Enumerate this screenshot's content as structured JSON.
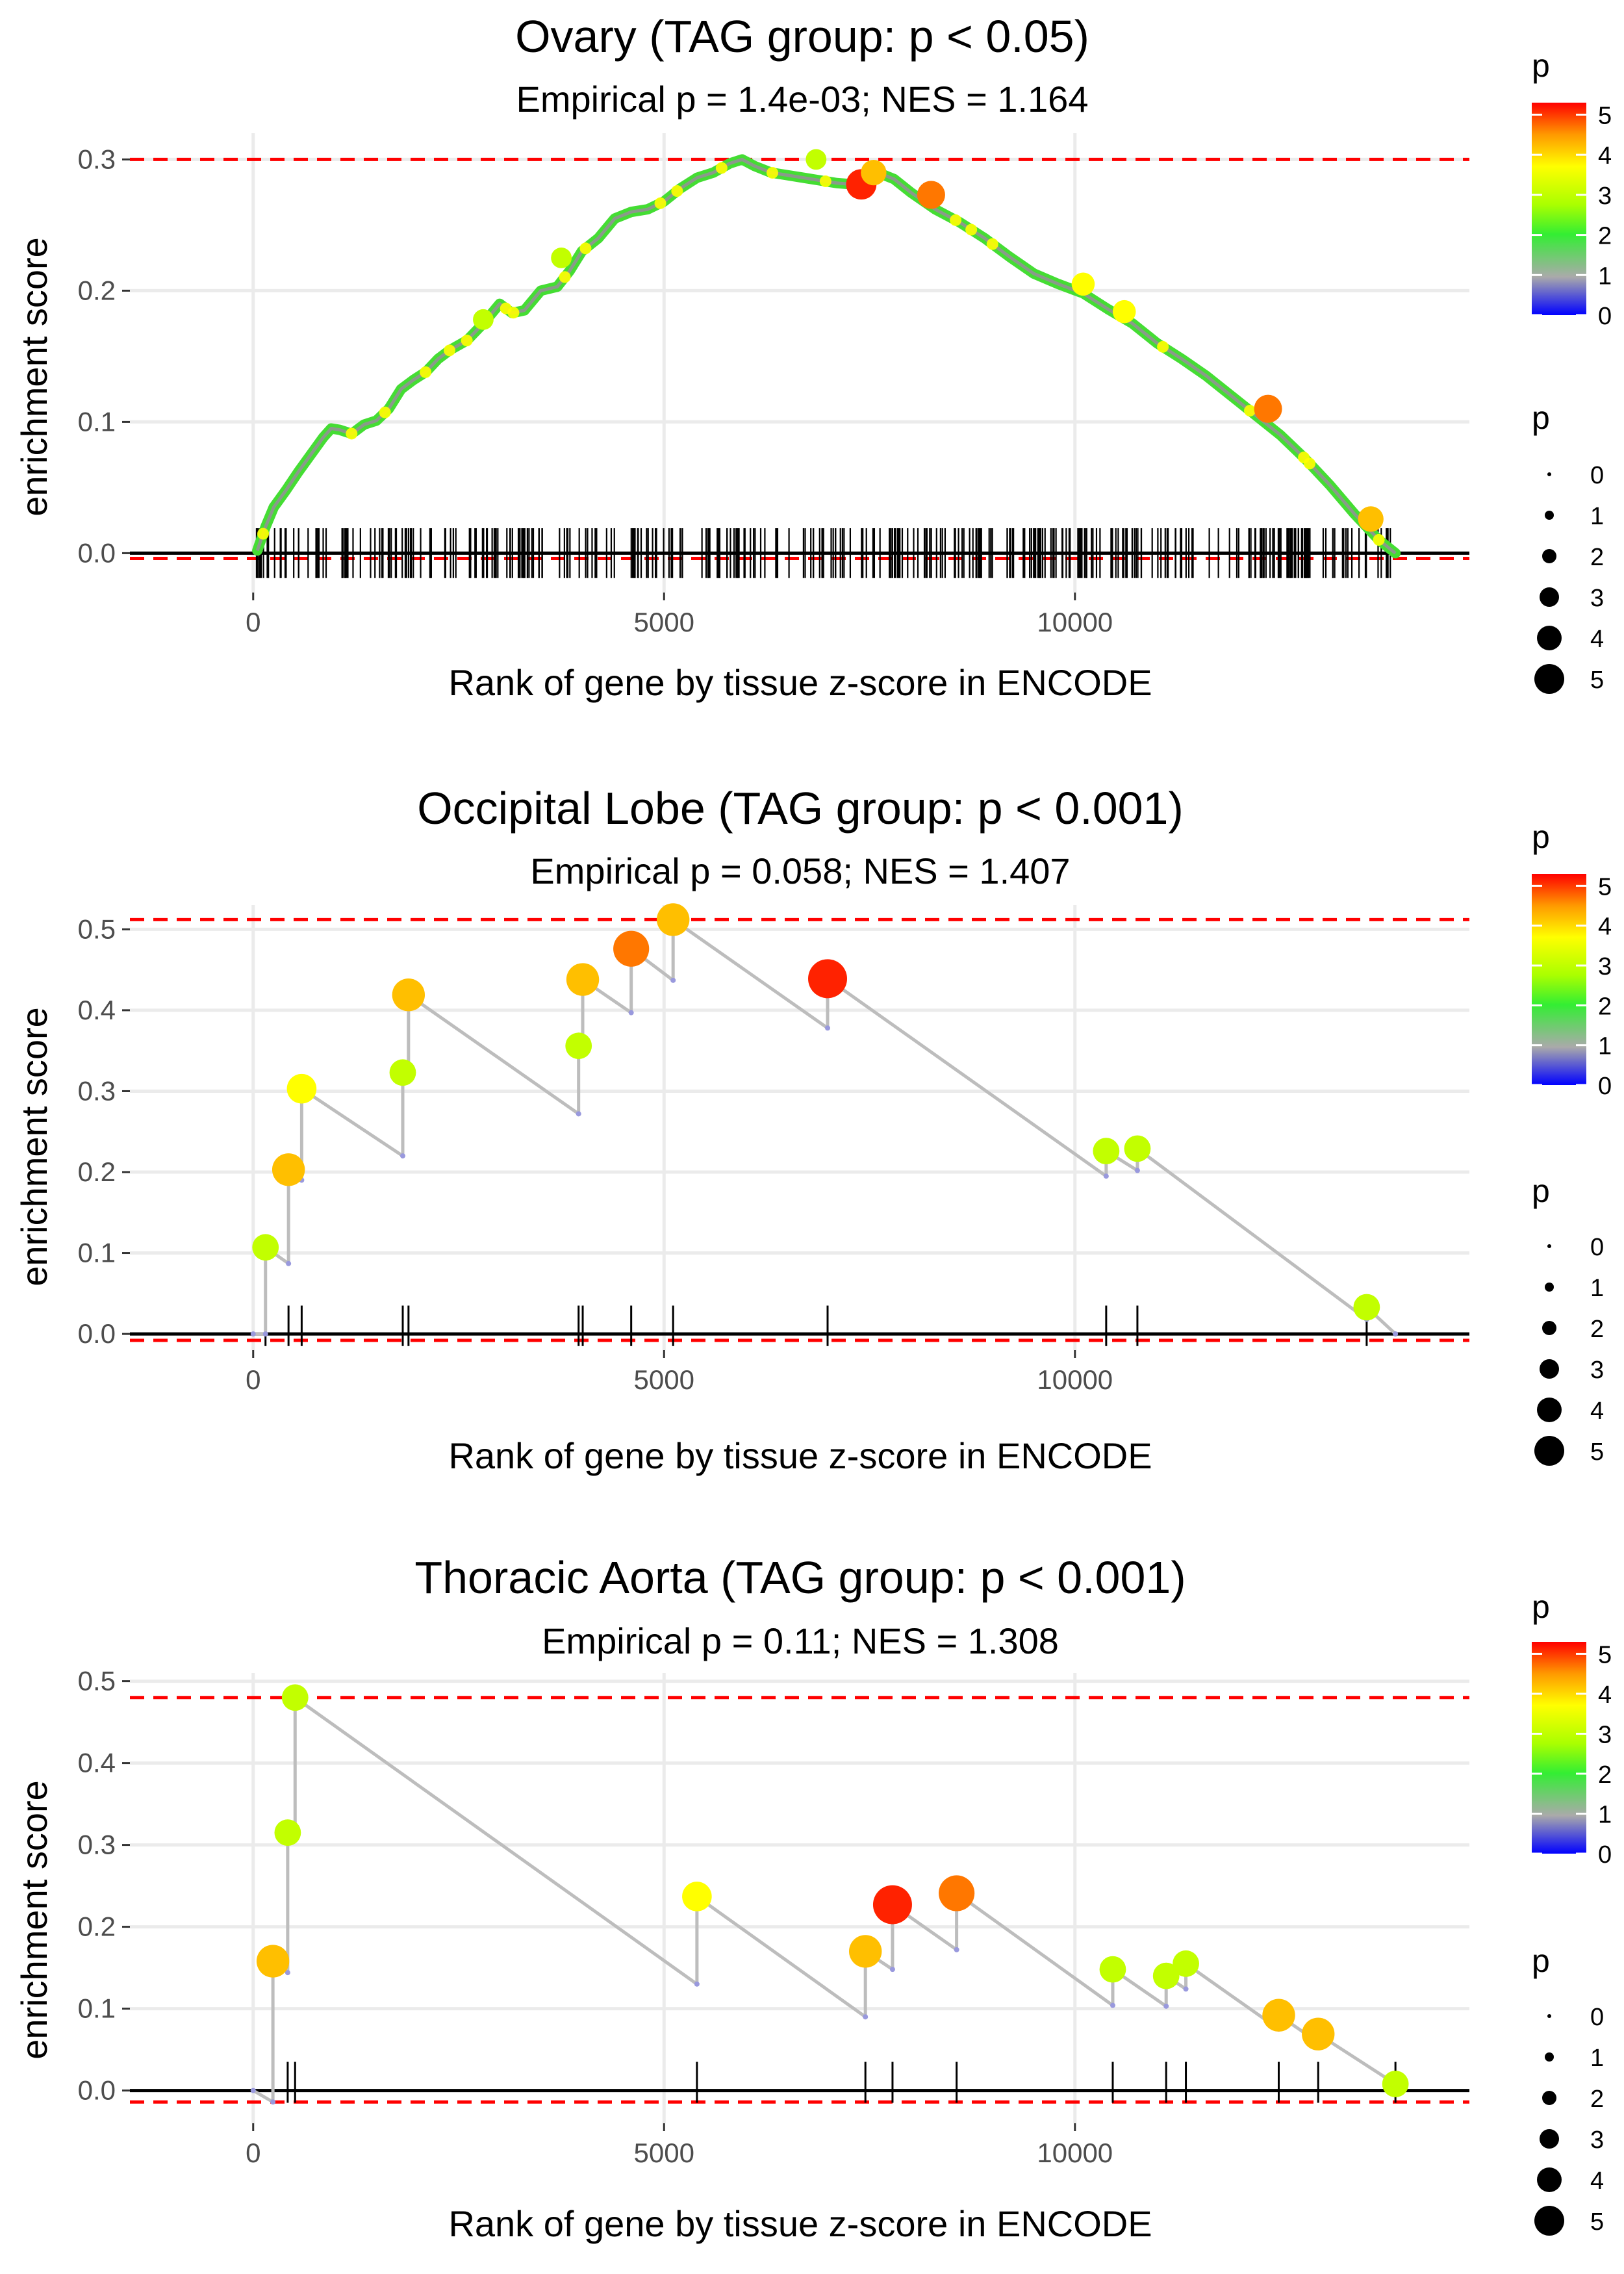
{
  "chart_data": [
    {
      "type": "line",
      "title": "Ovary (TAG group: p < 0.05)",
      "subtitle": "Empirical p = 1.4e-03; NES = 1.164",
      "xlabel": "Rank of gene by tissue z-score in ENCODE",
      "ylabel": "enrichment score",
      "xlim": [
        -1500,
        14800
      ],
      "ylim": [
        -0.03,
        0.32
      ],
      "xticks": [
        0,
        5000,
        10000
      ],
      "xtick_labels": [
        "0",
        "5000",
        "10000"
      ],
      "yticks": [
        0.0,
        0.1,
        0.2,
        0.3
      ],
      "ytick_labels": [
        "0.0",
        "0.1",
        "0.2",
        "0.3"
      ],
      "max_es": 0.3,
      "min_es": -0.004,
      "dense": true,
      "series": [
        {
          "name": "running enrichment",
          "x": [
            50,
            150,
            250,
            400,
            550,
            700,
            850,
            950,
            1050,
            1200,
            1350,
            1500,
            1650,
            1800,
            1950,
            2100,
            2250,
            2400,
            2600,
            2800,
            3000,
            3150,
            3300,
            3500,
            3700,
            3850,
            4000,
            4200,
            4400,
            4600,
            4800,
            5000,
            5200,
            5400,
            5600,
            5800,
            5950,
            6100,
            6300,
            6500,
            6700,
            6900,
            7100,
            7300,
            7450,
            7600,
            7800,
            8000,
            8300,
            8600,
            8900,
            9200,
            9500,
            9800,
            10100,
            10400,
            10700,
            11000,
            11300,
            11600,
            11900,
            12200,
            12500,
            12800,
            13100,
            13400,
            13700,
            13900
          ],
          "y": [
            0.002,
            0.02,
            0.035,
            0.048,
            0.062,
            0.075,
            0.088,
            0.095,
            0.094,
            0.091,
            0.098,
            0.101,
            0.11,
            0.125,
            0.132,
            0.138,
            0.148,
            0.155,
            0.162,
            0.175,
            0.19,
            0.183,
            0.185,
            0.2,
            0.203,
            0.215,
            0.23,
            0.24,
            0.255,
            0.26,
            0.262,
            0.268,
            0.278,
            0.286,
            0.29,
            0.297,
            0.3,
            0.295,
            0.29,
            0.288,
            0.286,
            0.284,
            0.282,
            0.281,
            0.283,
            0.29,
            0.285,
            0.275,
            0.262,
            0.252,
            0.24,
            0.226,
            0.213,
            0.205,
            0.198,
            0.186,
            0.175,
            0.16,
            0.148,
            0.135,
            0.12,
            0.105,
            0.09,
            0.072,
            0.052,
            0.03,
            0.01,
            0.0
          ]
        }
      ],
      "highlight_points": [
        {
          "x": 6850,
          "y": 0.3,
          "p": 3.0
        },
        {
          "x": 7400,
          "y": 0.281,
          "p": 5.0
        },
        {
          "x": 7550,
          "y": 0.29,
          "p": 4.0
        },
        {
          "x": 8250,
          "y": 0.273,
          "p": 4.5
        },
        {
          "x": 10100,
          "y": 0.205,
          "p": 3.5
        },
        {
          "x": 10600,
          "y": 0.184,
          "p": 3.5
        },
        {
          "x": 12350,
          "y": 0.11,
          "p": 4.5
        },
        {
          "x": 13600,
          "y": 0.026,
          "p": 4.0
        },
        {
          "x": 3750,
          "y": 0.225,
          "p": 3.0
        },
        {
          "x": 2800,
          "y": 0.178,
          "p": 3.0
        }
      ],
      "legend": {
        "color_title": "p",
        "colorbar_labels": [
          "5",
          "4",
          "3",
          "2",
          "1",
          "0"
        ],
        "colorbar_values": [
          5,
          4,
          3,
          2,
          1,
          0
        ],
        "colorbar_max": 5.3,
        "size_title": "p",
        "size_labels": [
          "0",
          "1",
          "2",
          "3",
          "4",
          "5"
        ],
        "size_values": [
          0,
          1,
          2,
          3,
          4,
          5
        ]
      }
    },
    {
      "type": "line",
      "title": "Occipital Lobe (TAG group: p < 0.001)",
      "subtitle": "Empirical p = 0.058; NES = 1.407",
      "xlabel": "Rank of gene by tissue z-score in ENCODE",
      "ylabel": "enrichment score",
      "xlim": [
        -1500,
        14800
      ],
      "ylim": [
        -0.02,
        0.53
      ],
      "xticks": [
        0,
        5000,
        10000
      ],
      "xtick_labels": [
        "0",
        "5000",
        "10000"
      ],
      "yticks": [
        0.0,
        0.1,
        0.2,
        0.3,
        0.4,
        0.5
      ],
      "ytick_labels": [
        "0.0",
        "0.1",
        "0.2",
        "0.3",
        "0.4",
        "0.5"
      ],
      "max_es": 0.512,
      "min_es": -0.008,
      "dense": false,
      "series": [
        {
          "name": "running enrichment",
          "x": [
            0,
            150,
            150,
            430,
            430,
            590,
            590,
            1820,
            1820,
            1890,
            1890,
            3960,
            3960,
            4010,
            4010,
            4600,
            4600,
            5110,
            5110,
            6990,
            6990,
            10380,
            10380,
            10760,
            10760,
            13550,
            13550,
            13900
          ],
          "y": [
            0.0,
            0.0,
            0.107,
            0.087,
            0.203,
            0.19,
            0.303,
            0.22,
            0.323,
            0.318,
            0.419,
            0.272,
            0.356,
            0.35,
            0.438,
            0.397,
            0.476,
            0.437,
            0.512,
            0.378,
            0.439,
            0.195,
            0.226,
            0.202,
            0.229,
            0.018,
            0.033,
            0.0
          ]
        }
      ],
      "hits": [
        {
          "x": 150,
          "y": 0.107,
          "p": 3.0
        },
        {
          "x": 430,
          "y": 0.203,
          "p": 4.0
        },
        {
          "x": 590,
          "y": 0.303,
          "p": 3.5
        },
        {
          "x": 1820,
          "y": 0.323,
          "p": 3.0
        },
        {
          "x": 1890,
          "y": 0.419,
          "p": 4.0
        },
        {
          "x": 3960,
          "y": 0.356,
          "p": 3.0
        },
        {
          "x": 4010,
          "y": 0.438,
          "p": 4.0
        },
        {
          "x": 4600,
          "y": 0.476,
          "p": 4.5
        },
        {
          "x": 5110,
          "y": 0.512,
          "p": 4.0
        },
        {
          "x": 6990,
          "y": 0.439,
          "p": 5.0
        },
        {
          "x": 10380,
          "y": 0.226,
          "p": 3.0
        },
        {
          "x": 10760,
          "y": 0.229,
          "p": 3.0
        },
        {
          "x": 13550,
          "y": 0.033,
          "p": 3.0
        }
      ],
      "legend": {
        "color_title": "p",
        "colorbar_labels": [
          "5",
          "4",
          "3",
          "2",
          "1",
          "0"
        ],
        "colorbar_values": [
          5,
          4,
          3,
          2,
          1,
          0
        ],
        "colorbar_max": 5.3,
        "size_title": "p",
        "size_labels": [
          "0",
          "1",
          "2",
          "3",
          "4",
          "5"
        ],
        "size_values": [
          0,
          1,
          2,
          3,
          4,
          5
        ]
      }
    },
    {
      "type": "line",
      "title": "Thoracic Aorta (TAG group: p < 0.001)",
      "subtitle": "Empirical p = 0.11; NES = 1.308",
      "xlabel": "Rank of gene by tissue z-score in ENCODE",
      "ylabel": "enrichment score",
      "xlim": [
        -1500,
        14800
      ],
      "ylim": [
        -0.04,
        0.51
      ],
      "xticks": [
        0,
        5000,
        10000
      ],
      "xtick_labels": [
        "0",
        "5000",
        "10000"
      ],
      "yticks": [
        0.0,
        0.1,
        0.2,
        0.3,
        0.4,
        0.5
      ],
      "ytick_labels": [
        "0.0",
        "0.1",
        "0.2",
        "0.3",
        "0.4",
        "0.5"
      ],
      "max_es": 0.48,
      "min_es": -0.014,
      "dense": false,
      "series": [
        {
          "name": "running enrichment",
          "x": [
            0,
            240,
            240,
            420,
            420,
            510,
            510,
            5400,
            5400,
            7450,
            7450,
            7780,
            7780,
            8560,
            8560,
            10460,
            10460,
            11110,
            11110,
            11350,
            11350,
            12480,
            12480,
            12960,
            12960,
            13900
          ],
          "y": [
            0.0,
            -0.014,
            0.158,
            0.144,
            0.315,
            0.31,
            0.48,
            0.13,
            0.237,
            0.09,
            0.17,
            0.148,
            0.227,
            0.172,
            0.241,
            0.104,
            0.148,
            0.103,
            0.14,
            0.124,
            0.155,
            0.075,
            0.092,
            0.059,
            0.069,
            0.008
          ]
        }
      ],
      "hits": [
        {
          "x": 240,
          "y": 0.158,
          "p": 4.0
        },
        {
          "x": 420,
          "y": 0.315,
          "p": 3.0
        },
        {
          "x": 510,
          "y": 0.48,
          "p": 3.0
        },
        {
          "x": 5400,
          "y": 0.237,
          "p": 3.5
        },
        {
          "x": 7450,
          "y": 0.17,
          "p": 4.0
        },
        {
          "x": 7780,
          "y": 0.227,
          "p": 5.0
        },
        {
          "x": 8560,
          "y": 0.241,
          "p": 4.5
        },
        {
          "x": 10460,
          "y": 0.148,
          "p": 3.0
        },
        {
          "x": 11110,
          "y": 0.14,
          "p": 3.0
        },
        {
          "x": 11350,
          "y": 0.155,
          "p": 3.0
        },
        {
          "x": 12480,
          "y": 0.092,
          "p": 4.0
        },
        {
          "x": 12960,
          "y": 0.069,
          "p": 4.0
        },
        {
          "x": 13900,
          "y": 0.008,
          "p": 3.0
        }
      ],
      "legend": {
        "color_title": "p",
        "colorbar_labels": [
          "5",
          "4",
          "3",
          "2",
          "1",
          "0"
        ],
        "colorbar_values": [
          5,
          4,
          3,
          2,
          1,
          0
        ],
        "colorbar_max": 5.3,
        "size_title": "p",
        "size_labels": [
          "0",
          "1",
          "2",
          "3",
          "4",
          "5"
        ],
        "size_values": [
          0,
          1,
          2,
          3,
          4,
          5
        ]
      }
    }
  ]
}
